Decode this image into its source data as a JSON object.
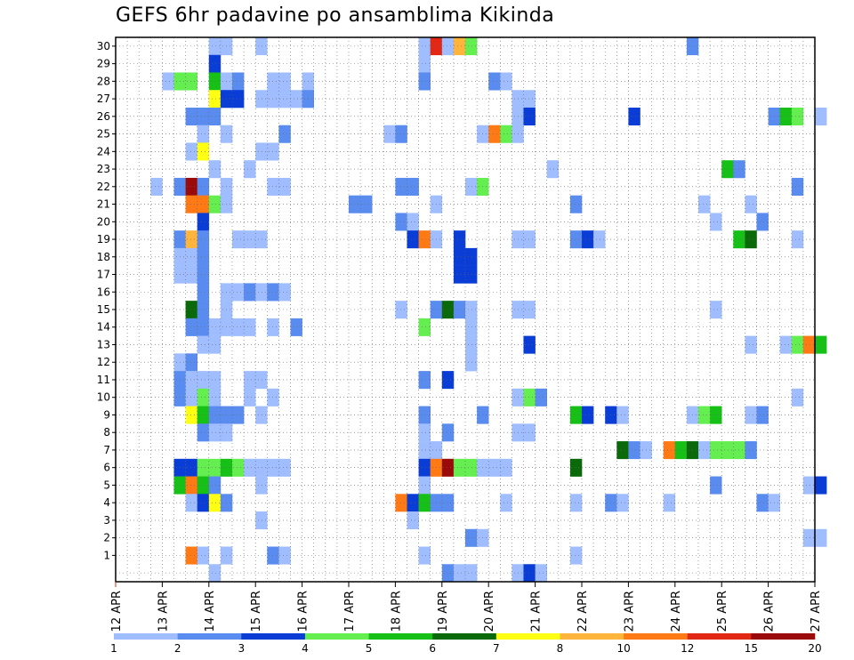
{
  "chart_data": {
    "type": "heatmap",
    "title": "GEFS 6hr padavine po ansamblima Kikinda",
    "x_ticks": [
      "12 APR",
      "13 APR",
      "14 APR",
      "15 APR",
      "16 APR",
      "17 APR",
      "18 APR",
      "19 APR",
      "20 APR",
      "21 APR",
      "22 APR",
      "23 APR",
      "24 APR",
      "25 APR",
      "26 APR",
      "27 APR"
    ],
    "y_ticks": [
      "1",
      "2",
      "3",
      "4",
      "5",
      "6",
      "7",
      "8",
      "9",
      "10",
      "11",
      "12",
      "13",
      "14",
      "15",
      "16",
      "17",
      "18",
      "19",
      "20",
      "21",
      "22",
      "23",
      "24",
      "25",
      "26",
      "27",
      "28",
      "29",
      "30"
    ],
    "ylim": [
      0,
      30
    ],
    "grid": true,
    "steps_per_day": 4,
    "legend": {
      "placement": "bottom",
      "labels": [
        "1",
        "2",
        "3",
        "4",
        "5",
        "6",
        "7",
        "8",
        "10",
        "12",
        "15",
        "20"
      ],
      "colors": [
        "#a0beff",
        "#5a8cf0",
        "#0a3cd6",
        "#64ee50",
        "#16c016",
        "#0a6a0a",
        "#ffff14",
        "#ffb43c",
        "#ff7a14",
        "#e02814",
        "#9a0a0a"
      ]
    },
    "cells": [
      [
        30,
        8,
        0
      ],
      [
        30,
        9,
        0
      ],
      [
        30,
        12,
        0
      ],
      [
        30,
        26,
        0
      ],
      [
        30,
        27,
        9
      ],
      [
        30,
        28,
        0
      ],
      [
        30,
        29,
        7
      ],
      [
        30,
        30,
        3
      ],
      [
        30,
        49,
        1
      ],
      [
        29,
        8,
        2
      ],
      [
        29,
        26,
        0
      ],
      [
        28,
        4,
        0
      ],
      [
        28,
        5,
        3
      ],
      [
        28,
        6,
        3
      ],
      [
        28,
        8,
        4
      ],
      [
        28,
        9,
        0
      ],
      [
        28,
        10,
        1
      ],
      [
        28,
        13,
        0
      ],
      [
        28,
        14,
        0
      ],
      [
        28,
        16,
        0
      ],
      [
        28,
        26,
        1
      ],
      [
        28,
        32,
        1
      ],
      [
        28,
        33,
        0
      ],
      [
        27,
        8,
        6
      ],
      [
        27,
        9,
        2
      ],
      [
        27,
        10,
        2
      ],
      [
        27,
        12,
        0
      ],
      [
        27,
        13,
        0
      ],
      [
        27,
        14,
        0
      ],
      [
        27,
        15,
        0
      ],
      [
        27,
        16,
        1
      ],
      [
        27,
        34,
        0
      ],
      [
        27,
        35,
        0
      ],
      [
        26,
        6,
        1
      ],
      [
        26,
        7,
        1
      ],
      [
        26,
        8,
        1
      ],
      [
        26,
        34,
        0
      ],
      [
        26,
        35,
        2
      ],
      [
        26,
        44,
        2
      ],
      [
        26,
        56,
        1
      ],
      [
        26,
        57,
        4
      ],
      [
        26,
        58,
        3
      ],
      [
        26,
        60,
        0
      ],
      [
        25,
        7,
        0
      ],
      [
        25,
        9,
        0
      ],
      [
        25,
        14,
        1
      ],
      [
        25,
        23,
        0
      ],
      [
        25,
        24,
        1
      ],
      [
        25,
        31,
        0
      ],
      [
        25,
        32,
        8
      ],
      [
        25,
        33,
        3
      ],
      [
        25,
        34,
        0
      ],
      [
        24,
        6,
        0
      ],
      [
        24,
        7,
        6
      ],
      [
        24,
        12,
        0
      ],
      [
        24,
        13,
        0
      ],
      [
        23,
        8,
        0
      ],
      [
        23,
        11,
        0
      ],
      [
        23,
        37,
        0
      ],
      [
        23,
        52,
        4
      ],
      [
        23,
        53,
        1
      ],
      [
        22,
        3,
        0
      ],
      [
        22,
        5,
        1
      ],
      [
        22,
        6,
        10
      ],
      [
        22,
        7,
        1
      ],
      [
        22,
        9,
        0
      ],
      [
        22,
        13,
        0
      ],
      [
        22,
        14,
        0
      ],
      [
        22,
        24,
        1
      ],
      [
        22,
        25,
        1
      ],
      [
        22,
        30,
        0
      ],
      [
        22,
        31,
        3
      ],
      [
        22,
        58,
        1
      ],
      [
        21,
        6,
        8
      ],
      [
        21,
        7,
        8
      ],
      [
        21,
        8,
        3
      ],
      [
        21,
        9,
        0
      ],
      [
        21,
        20,
        1
      ],
      [
        21,
        21,
        1
      ],
      [
        21,
        27,
        0
      ],
      [
        21,
        39,
        1
      ],
      [
        21,
        50,
        0
      ],
      [
        21,
        54,
        0
      ],
      [
        20,
        7,
        2
      ],
      [
        20,
        24,
        1
      ],
      [
        20,
        25,
        0
      ],
      [
        20,
        51,
        0
      ],
      [
        20,
        55,
        1
      ],
      [
        19,
        5,
        1
      ],
      [
        19,
        6,
        7
      ],
      [
        19,
        7,
        1
      ],
      [
        19,
        10,
        0
      ],
      [
        19,
        11,
        0
      ],
      [
        19,
        12,
        0
      ],
      [
        19,
        25,
        2
      ],
      [
        19,
        26,
        8
      ],
      [
        19,
        27,
        0
      ],
      [
        19,
        29,
        2
      ],
      [
        19,
        34,
        0
      ],
      [
        19,
        35,
        0
      ],
      [
        19,
        39,
        1
      ],
      [
        19,
        40,
        2
      ],
      [
        19,
        41,
        0
      ],
      [
        19,
        53,
        4
      ],
      [
        19,
        54,
        5
      ],
      [
        19,
        58,
        0
      ],
      [
        18,
        5,
        0
      ],
      [
        18,
        6,
        0
      ],
      [
        18,
        7,
        1
      ],
      [
        18,
        29,
        2
      ],
      [
        18,
        30,
        2
      ],
      [
        17,
        5,
        0
      ],
      [
        17,
        6,
        0
      ],
      [
        17,
        7,
        1
      ],
      [
        17,
        29,
        2
      ],
      [
        17,
        30,
        2
      ],
      [
        16,
        7,
        1
      ],
      [
        16,
        9,
        0
      ],
      [
        16,
        10,
        0
      ],
      [
        16,
        11,
        1
      ],
      [
        16,
        12,
        0
      ],
      [
        16,
        13,
        1
      ],
      [
        16,
        14,
        0
      ],
      [
        15,
        6,
        5
      ],
      [
        15,
        7,
        1
      ],
      [
        15,
        9,
        0
      ],
      [
        15,
        24,
        0
      ],
      [
        15,
        27,
        1
      ],
      [
        15,
        28,
        5
      ],
      [
        15,
        29,
        1
      ],
      [
        15,
        30,
        0
      ],
      [
        15,
        34,
        0
      ],
      [
        15,
        35,
        0
      ],
      [
        15,
        51,
        0
      ],
      [
        14,
        6,
        1
      ],
      [
        14,
        7,
        1
      ],
      [
        14,
        8,
        0
      ],
      [
        14,
        9,
        0
      ],
      [
        14,
        10,
        0
      ],
      [
        14,
        11,
        0
      ],
      [
        14,
        13,
        0
      ],
      [
        14,
        15,
        1
      ],
      [
        14,
        26,
        3
      ],
      [
        14,
        30,
        0
      ],
      [
        13,
        7,
        0
      ],
      [
        13,
        8,
        0
      ],
      [
        13,
        30,
        0
      ],
      [
        13,
        35,
        2
      ],
      [
        13,
        54,
        0
      ],
      [
        13,
        57,
        0
      ],
      [
        13,
        58,
        3
      ],
      [
        13,
        59,
        8
      ],
      [
        13,
        60,
        4
      ],
      [
        12,
        5,
        0
      ],
      [
        12,
        6,
        1
      ],
      [
        12,
        30,
        0
      ],
      [
        11,
        5,
        1
      ],
      [
        11,
        6,
        0
      ],
      [
        11,
        7,
        0
      ],
      [
        11,
        8,
        0
      ],
      [
        11,
        11,
        0
      ],
      [
        11,
        12,
        0
      ],
      [
        11,
        26,
        1
      ],
      [
        11,
        28,
        2
      ],
      [
        10,
        5,
        1
      ],
      [
        10,
        6,
        0
      ],
      [
        10,
        7,
        3
      ],
      [
        10,
        8,
        0
      ],
      [
        10,
        11,
        0
      ],
      [
        10,
        13,
        0
      ],
      [
        10,
        34,
        0
      ],
      [
        10,
        35,
        3
      ],
      [
        10,
        36,
        1
      ],
      [
        10,
        58,
        0
      ],
      [
        9,
        6,
        6
      ],
      [
        9,
        7,
        4
      ],
      [
        9,
        8,
        1
      ],
      [
        9,
        9,
        1
      ],
      [
        9,
        10,
        1
      ],
      [
        9,
        12,
        0
      ],
      [
        9,
        26,
        1
      ],
      [
        9,
        31,
        1
      ],
      [
        9,
        39,
        4
      ],
      [
        9,
        40,
        2
      ],
      [
        9,
        42,
        2
      ],
      [
        9,
        43,
        0
      ],
      [
        9,
        49,
        0
      ],
      [
        9,
        50,
        3
      ],
      [
        9,
        51,
        4
      ],
      [
        9,
        54,
        0
      ],
      [
        9,
        55,
        1
      ],
      [
        8,
        7,
        1
      ],
      [
        8,
        8,
        0
      ],
      [
        8,
        9,
        0
      ],
      [
        8,
        26,
        0
      ],
      [
        8,
        28,
        1
      ],
      [
        8,
        34,
        0
      ],
      [
        8,
        35,
        0
      ],
      [
        7,
        26,
        0
      ],
      [
        7,
        27,
        0
      ],
      [
        7,
        43,
        5
      ],
      [
        7,
        44,
        1
      ],
      [
        7,
        45,
        0
      ],
      [
        7,
        47,
        8
      ],
      [
        7,
        48,
        4
      ],
      [
        7,
        49,
        5
      ],
      [
        7,
        50,
        0
      ],
      [
        7,
        51,
        3
      ],
      [
        7,
        52,
        3
      ],
      [
        7,
        53,
        3
      ],
      [
        7,
        54,
        1
      ],
      [
        6,
        5,
        2
      ],
      [
        6,
        6,
        2
      ],
      [
        6,
        7,
        3
      ],
      [
        6,
        8,
        3
      ],
      [
        6,
        9,
        4
      ],
      [
        6,
        10,
        3
      ],
      [
        6,
        11,
        0
      ],
      [
        6,
        12,
        0
      ],
      [
        6,
        13,
        0
      ],
      [
        6,
        14,
        0
      ],
      [
        6,
        26,
        2
      ],
      [
        6,
        27,
        8
      ],
      [
        6,
        28,
        10
      ],
      [
        6,
        29,
        3
      ],
      [
        6,
        30,
        3
      ],
      [
        6,
        31,
        0
      ],
      [
        6,
        32,
        0
      ],
      [
        6,
        33,
        0
      ],
      [
        6,
        39,
        5
      ],
      [
        5,
        5,
        4
      ],
      [
        5,
        6,
        8
      ],
      [
        5,
        7,
        4
      ],
      [
        5,
        8,
        1
      ],
      [
        5,
        12,
        0
      ],
      [
        5,
        26,
        0
      ],
      [
        5,
        51,
        1
      ],
      [
        5,
        59,
        0
      ],
      [
        5,
        60,
        2
      ],
      [
        4,
        6,
        0
      ],
      [
        4,
        7,
        2
      ],
      [
        4,
        8,
        6
      ],
      [
        4,
        9,
        1
      ],
      [
        4,
        24,
        8
      ],
      [
        4,
        25,
        2
      ],
      [
        4,
        26,
        4
      ],
      [
        4,
        27,
        1
      ],
      [
        4,
        28,
        1
      ],
      [
        4,
        33,
        0
      ],
      [
        4,
        39,
        0
      ],
      [
        4,
        42,
        1
      ],
      [
        4,
        43,
        0
      ],
      [
        4,
        47,
        0
      ],
      [
        4,
        55,
        1
      ],
      [
        4,
        56,
        0
      ],
      [
        3,
        12,
        0
      ],
      [
        3,
        25,
        0
      ],
      [
        2,
        30,
        1
      ],
      [
        2,
        31,
        0
      ],
      [
        2,
        59,
        0
      ],
      [
        2,
        60,
        0
      ],
      [
        1,
        6,
        8
      ],
      [
        1,
        7,
        0
      ],
      [
        1,
        9,
        0
      ],
      [
        1,
        13,
        1
      ],
      [
        1,
        14,
        0
      ],
      [
        1,
        26,
        0
      ],
      [
        1,
        39,
        0
      ],
      [
        0,
        8,
        0
      ],
      [
        0,
        28,
        1
      ],
      [
        0,
        29,
        0
      ],
      [
        0,
        30,
        0
      ],
      [
        0,
        34,
        0
      ],
      [
        0,
        35,
        2
      ],
      [
        0,
        36,
        0
      ]
    ]
  }
}
